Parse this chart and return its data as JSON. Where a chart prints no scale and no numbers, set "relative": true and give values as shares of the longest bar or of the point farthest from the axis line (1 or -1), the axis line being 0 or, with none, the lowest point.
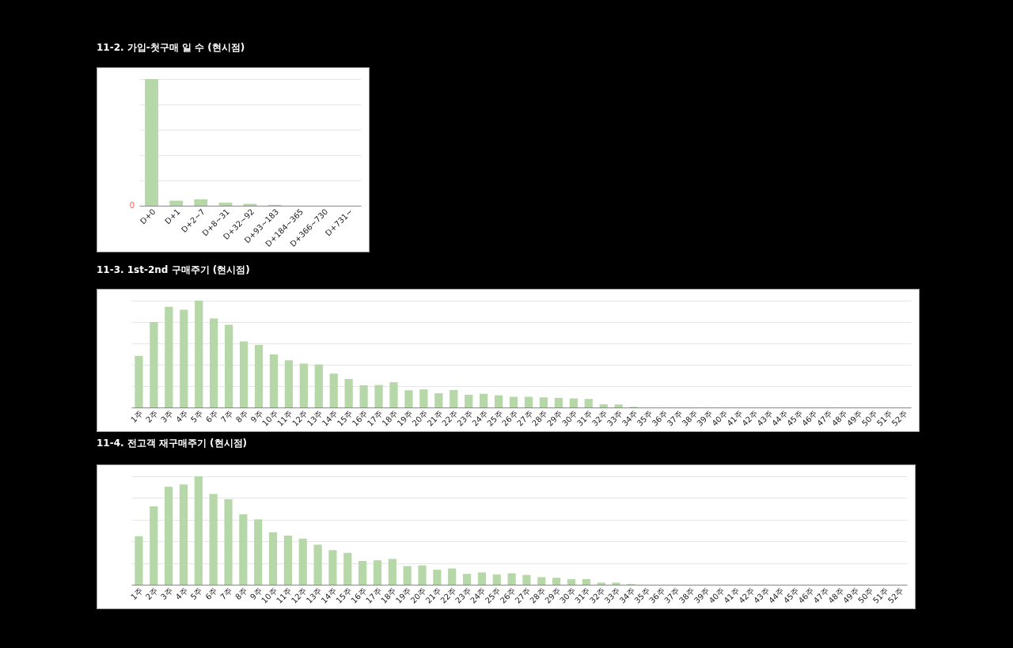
{
  "chart_data": [
    {
      "type": "bar",
      "title": "11-2. 가입-첫구매 일 수 (현시점)",
      "categories": [
        "D+0",
        "D+1",
        "D+2~7",
        "D+8~31",
        "D+32~92",
        "D+93~183",
        "D+184~365",
        "D+366~730",
        "D+731~"
      ],
      "values": [
        1,
        0.04,
        0.051,
        0.024,
        0.015,
        0.007,
        0,
        0,
        0
      ],
      "color": "#b6d7a8",
      "relative": true,
      "grid": "y",
      "annotations": [
        "0"
      ]
    },
    {
      "type": "bar",
      "title": "11-3. 1st-2nd 구매주기 (현시점)",
      "categories": [
        "1주",
        "2주",
        "3주",
        "4주",
        "5주",
        "6주",
        "7주",
        "8주",
        "9주",
        "10주",
        "11주",
        "12주",
        "13주",
        "14주",
        "15주",
        "16주",
        "17주",
        "18주",
        "19주",
        "20주",
        "21주",
        "22주",
        "23주",
        "24주",
        "25주",
        "26주",
        "27주",
        "28주",
        "29주",
        "30주",
        "31주",
        "32주",
        "33주",
        "34주",
        "35주",
        "36주",
        "37주",
        "38주",
        "39주",
        "40주",
        "41주",
        "42주",
        "43주",
        "44주",
        "45주",
        "46주",
        "47주",
        "48주",
        "49주",
        "50주",
        "51주",
        "52주"
      ],
      "values": [
        0.483,
        0.8,
        0.942,
        0.914,
        1,
        0.833,
        0.775,
        0.619,
        0.586,
        0.497,
        0.442,
        0.411,
        0.403,
        0.317,
        0.267,
        0.208,
        0.211,
        0.236,
        0.161,
        0.169,
        0.133,
        0.164,
        0.119,
        0.128,
        0.114,
        0.1,
        0.1,
        0.095,
        0.09,
        0.085,
        0.08,
        0.03,
        0.028,
        0.006,
        0,
        0,
        0,
        0,
        0,
        0,
        0,
        0,
        0,
        0,
        0,
        0,
        0,
        0,
        0,
        0,
        0,
        0
      ],
      "color": "#b6d7a8",
      "relative": true,
      "grid": "y"
    },
    {
      "type": "bar",
      "title": "11-4. 전고객 재구매주기 (현시점)",
      "categories": [
        "1주",
        "2주",
        "3주",
        "4주",
        "5주",
        "6주",
        "7주",
        "8주",
        "9주",
        "10주",
        "11주",
        "12주",
        "13주",
        "14주",
        "15주",
        "16주",
        "17주",
        "18주",
        "19주",
        "20주",
        "21주",
        "22주",
        "23주",
        "24주",
        "25주",
        "26주",
        "27주",
        "28주",
        "29주",
        "30주",
        "31주",
        "32주",
        "33주",
        "34주",
        "35주",
        "36주",
        "37주",
        "38주",
        "39주",
        "40주",
        "41주",
        "42주",
        "43주",
        "44주",
        "45주",
        "46주",
        "47주",
        "48주",
        "49주",
        "50주",
        "51주",
        "52주"
      ],
      "values": [
        0.447,
        0.722,
        0.903,
        0.925,
        1,
        0.838,
        0.788,
        0.65,
        0.603,
        0.484,
        0.453,
        0.425,
        0.369,
        0.319,
        0.294,
        0.219,
        0.225,
        0.238,
        0.172,
        0.178,
        0.138,
        0.15,
        0.1,
        0.113,
        0.094,
        0.106,
        0.09,
        0.07,
        0.064,
        0.051,
        0.051,
        0.019,
        0.019,
        0.006,
        0,
        0,
        0,
        0,
        0,
        0,
        0,
        0,
        0,
        0,
        0,
        0,
        0,
        0,
        0,
        0,
        0,
        0
      ],
      "color": "#b6d7a8",
      "relative": true,
      "grid": "y"
    }
  ]
}
